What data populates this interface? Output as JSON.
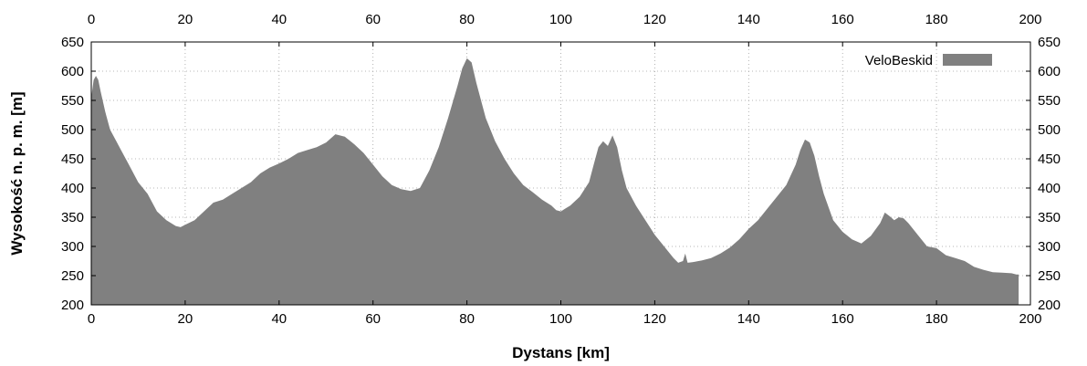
{
  "chart_data": {
    "type": "area",
    "title": "",
    "xlabel": "Dystans [km]",
    "ylabel": "Wysokość n. p. m. [m]",
    "xlim": [
      0,
      200
    ],
    "ylim": [
      200,
      650
    ],
    "x_ticks": [
      0,
      20,
      40,
      60,
      80,
      100,
      120,
      140,
      160,
      180,
      200
    ],
    "y_ticks": [
      200,
      250,
      300,
      350,
      400,
      450,
      500,
      550,
      600,
      650
    ],
    "mirror_axes": true,
    "grid": true,
    "legend_position": "top-right",
    "series": [
      {
        "name": "VeloBeskid",
        "color": "#808080",
        "x": [
          0,
          0.5,
          1,
          1.5,
          2,
          3,
          4,
          6,
          8,
          10,
          12,
          14,
          16,
          18,
          19,
          20,
          22,
          24,
          26,
          28,
          30,
          32,
          34,
          36,
          38,
          40,
          42,
          44,
          46,
          48,
          50,
          52,
          54,
          56,
          58,
          60,
          62,
          64,
          66,
          68,
          70,
          72,
          74,
          76,
          78,
          79,
          80,
          81,
          82,
          84,
          86,
          88,
          90,
          92,
          94,
          96,
          98,
          99,
          100,
          101,
          102,
          104,
          106,
          107,
          108,
          109,
          110,
          111,
          112,
          113,
          114,
          116,
          118,
          120,
          122,
          124,
          125,
          126,
          126.5,
          127,
          128,
          130,
          132,
          134,
          136,
          138,
          140,
          142,
          144,
          146,
          148,
          150,
          151,
          152,
          153,
          154,
          155,
          156,
          158,
          160,
          162,
          164,
          166,
          168,
          169,
          170,
          171,
          172,
          173,
          174,
          176,
          178,
          180,
          182,
          184,
          186,
          188,
          190,
          192,
          194,
          196,
          197,
          197.5
        ],
        "y": [
          555,
          585,
          592,
          585,
          565,
          530,
          500,
          470,
          440,
          410,
          390,
          360,
          345,
          335,
          333,
          337,
          345,
          360,
          375,
          380,
          390,
          400,
          410,
          425,
          435,
          442,
          450,
          460,
          465,
          470,
          478,
          492,
          488,
          475,
          460,
          440,
          420,
          405,
          398,
          395,
          400,
          430,
          470,
          520,
          575,
          605,
          622,
          615,
          580,
          520,
          480,
          450,
          425,
          405,
          393,
          380,
          370,
          362,
          360,
          365,
          370,
          385,
          410,
          440,
          470,
          480,
          472,
          490,
          470,
          430,
          400,
          370,
          345,
          320,
          300,
          280,
          272,
          275,
          288,
          272,
          273,
          276,
          280,
          288,
          298,
          312,
          330,
          345,
          365,
          385,
          405,
          440,
          465,
          483,
          478,
          455,
          420,
          390,
          345,
          325,
          312,
          305,
          318,
          340,
          358,
          352,
          345,
          350,
          348,
          340,
          320,
          300,
          297,
          285,
          280,
          275,
          265,
          260,
          256,
          255,
          254,
          252,
          252
        ]
      }
    ]
  }
}
